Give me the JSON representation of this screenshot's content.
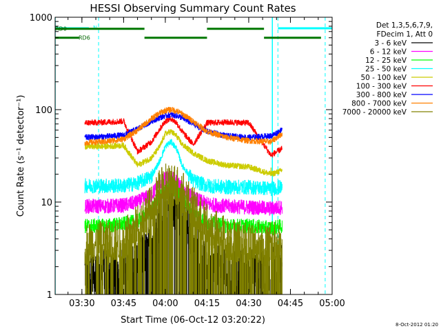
{
  "chart_data": {
    "type": "line",
    "title": "HESSI Observing Summary Count Rates",
    "xlabel": "Start Time (06-Oct-12 03:20:22)",
    "ylabel": "Count Rate (s⁻¹ detector⁻¹)",
    "y_scale": "log",
    "ylim": [
      1,
      1000
    ],
    "xlim": [
      "03:20:22",
      "05:00:00"
    ],
    "x_ticks": [
      "03:30",
      "03:45",
      "04:00",
      "04:15",
      "04:30",
      "04:45",
      "05:00"
    ],
    "y_ticks": [
      "1",
      "10",
      "100",
      "1000"
    ],
    "grid": false,
    "legend": {
      "placement": "right",
      "header": [
        "Det 1,3,5,6,7,9,",
        "FDecim 1, Att 0"
      ],
      "entries": [
        {
          "label": "3 - 6 keV",
          "color": "#000000"
        },
        {
          "label": "6 - 12 keV",
          "color": "#ff00ff"
        },
        {
          "label": "12 - 25 keV",
          "color": "#00ff00"
        },
        {
          "label": "25 - 50 keV",
          "color": "#00ffff"
        },
        {
          "label": "50 - 100 keV",
          "color": "#cccc00"
        },
        {
          "label": "100 - 300 keV",
          "color": "#ff0000"
        },
        {
          "label": "300 - 800 keV",
          "color": "#0000ff"
        },
        {
          "label": "800 - 7000 keV",
          "color": "#ff8000"
        },
        {
          "label": "7000 - 20000 keV",
          "color": "#808000"
        }
      ]
    },
    "annotations": {
      "night_label": "N",
      "saa_labels": [
        "RD0",
        "RD6"
      ],
      "timestamp": "8-Oct-2012 01:20"
    },
    "series": [
      {
        "band": "3 - 6 keV",
        "color": "#000000",
        "x": [
          "03:31",
          "03:38",
          "03:45",
          "03:50",
          "03:55",
          "03:58",
          "04:00",
          "04:02",
          "04:04",
          "04:06",
          "04:10",
          "04:15",
          "04:22",
          "04:30",
          "04:38",
          "04:42"
        ],
        "y": [
          1.8,
          1.9,
          1.9,
          2.2,
          3.5,
          6.5,
          8.5,
          9.2,
          8.5,
          6.5,
          4.2,
          2.2,
          1.8,
          1.8,
          1.9,
          2.0
        ]
      },
      {
        "band": "6 - 12 keV",
        "color": "#ff00ff",
        "x": [
          "03:31",
          "03:38",
          "03:45",
          "03:50",
          "03:55",
          "03:58",
          "04:00",
          "04:02",
          "04:04",
          "04:06",
          "04:10",
          "04:15",
          "04:22",
          "04:30",
          "04:38",
          "04:42"
        ],
        "y": [
          9,
          9,
          9.2,
          10,
          12,
          16,
          18,
          18.5,
          17,
          14,
          11,
          9.5,
          9,
          8.8,
          8.5,
          8.8
        ]
      },
      {
        "band": "12 - 25 keV",
        "color": "#00ff00",
        "x": [
          "03:31",
          "03:38",
          "03:45",
          "03:50",
          "03:55",
          "03:58",
          "04:00",
          "04:02",
          "04:04",
          "04:06",
          "04:10",
          "04:15",
          "04:22",
          "04:30",
          "04:38",
          "04:42"
        ],
        "y": [
          5.5,
          5.5,
          5.8,
          6.2,
          8,
          11,
          13,
          14,
          13,
          11,
          7.5,
          6,
          5.5,
          5.5,
          5.2,
          5.5
        ]
      },
      {
        "band": "25 - 50 keV",
        "color": "#00ffff",
        "x": [
          "03:31",
          "03:38",
          "03:45",
          "03:50",
          "03:55",
          "03:58",
          "04:00",
          "04:02",
          "04:04",
          "04:06",
          "04:10",
          "04:15",
          "04:22",
          "04:30",
          "04:38",
          "04:42"
        ],
        "y": [
          15,
          15,
          15,
          16,
          19,
          28,
          40,
          45,
          38,
          25,
          17,
          15,
          14.5,
          14.5,
          14,
          14.5
        ]
      },
      {
        "band": "50 - 100 keV",
        "color": "#cccc00",
        "x": [
          "03:31",
          "03:38",
          "03:45",
          "03:50",
          "03:55",
          "03:58",
          "04:00",
          "04:02",
          "04:04",
          "04:06",
          "04:10",
          "04:15",
          "04:22",
          "04:30",
          "04:38",
          "04:42"
        ],
        "y": [
          40,
          40,
          41,
          25,
          30,
          40,
          55,
          58,
          52,
          42,
          34,
          28,
          25,
          24,
          20,
          22
        ]
      },
      {
        "band": "100 - 300 keV",
        "color": "#ff0000",
        "x": [
          "03:31",
          "03:38",
          "03:45",
          "03:50",
          "03:55",
          "03:58",
          "04:00",
          "04:02",
          "04:04",
          "04:06",
          "04:10",
          "04:15",
          "04:22",
          "04:30",
          "04:38",
          "04:42"
        ],
        "y": [
          72,
          73,
          75,
          35,
          45,
          62,
          75,
          80,
          72,
          58,
          42,
          72,
          73,
          72,
          32,
          38
        ]
      },
      {
        "band": "300 - 800 keV",
        "color": "#0000ff",
        "x": [
          "03:31",
          "03:38",
          "03:45",
          "03:50",
          "03:55",
          "03:58",
          "04:00",
          "04:02",
          "04:04",
          "04:06",
          "04:10",
          "04:15",
          "04:22",
          "04:30",
          "04:38",
          "04:42"
        ],
        "y": [
          50,
          51,
          53,
          62,
          75,
          82,
          86,
          88,
          86,
          82,
          70,
          58,
          52,
          50,
          52,
          60
        ]
      },
      {
        "band": "800 - 7000 keV",
        "color": "#ff8000",
        "x": [
          "03:31",
          "03:38",
          "03:45",
          "03:50",
          "03:55",
          "03:58",
          "04:00",
          "04:02",
          "04:04",
          "04:06",
          "04:10",
          "04:15",
          "04:22",
          "04:30",
          "04:38",
          "04:42"
        ],
        "y": [
          44,
          45,
          48,
          60,
          80,
          92,
          98,
          100,
          97,
          90,
          75,
          58,
          50,
          46,
          45,
          55
        ]
      },
      {
        "band": "7000 - 20000 keV",
        "color": "#808000",
        "x": [
          "03:31",
          "03:38",
          "03:45",
          "03:50",
          "03:55",
          "03:58",
          "04:00",
          "04:02",
          "04:04",
          "04:06",
          "04:10",
          "04:15",
          "04:22",
          "04:30",
          "04:38",
          "04:42"
        ],
        "y": [
          3.5,
          3.6,
          3.8,
          5.5,
          9,
          13,
          15,
          16,
          15,
          13,
          8.5,
          5.5,
          4,
          3.6,
          3.5,
          3.6
        ]
      }
    ],
    "night_intervals": [
      [
        "03:20:22",
        "03:32:30"
      ],
      [
        "04:40:30",
        "05:00:00"
      ]
    ],
    "saa_segments": [
      {
        "label": "RD0",
        "x": [
          "03:20:22",
          "03:52:30"
        ],
        "level": 750
      },
      {
        "label": "RD6",
        "x": [
          "03:20:22",
          "03:29:00"
        ],
        "level": 600
      },
      {
        "label": "",
        "x": [
          "03:52:30",
          "04:15:00"
        ],
        "level": 600
      },
      {
        "label": "",
        "x": [
          "04:15:00",
          "04:35:30"
        ],
        "level": 750
      },
      {
        "label": "",
        "x": [
          "04:35:30",
          "04:56:00"
        ],
        "level": 600
      }
    ],
    "vertical_markers": {
      "solid": [
        "03:20:22",
        "04:38:30"
      ],
      "dashed": [
        "03:36:00",
        "04:40:30",
        "04:57:30"
      ]
    }
  }
}
